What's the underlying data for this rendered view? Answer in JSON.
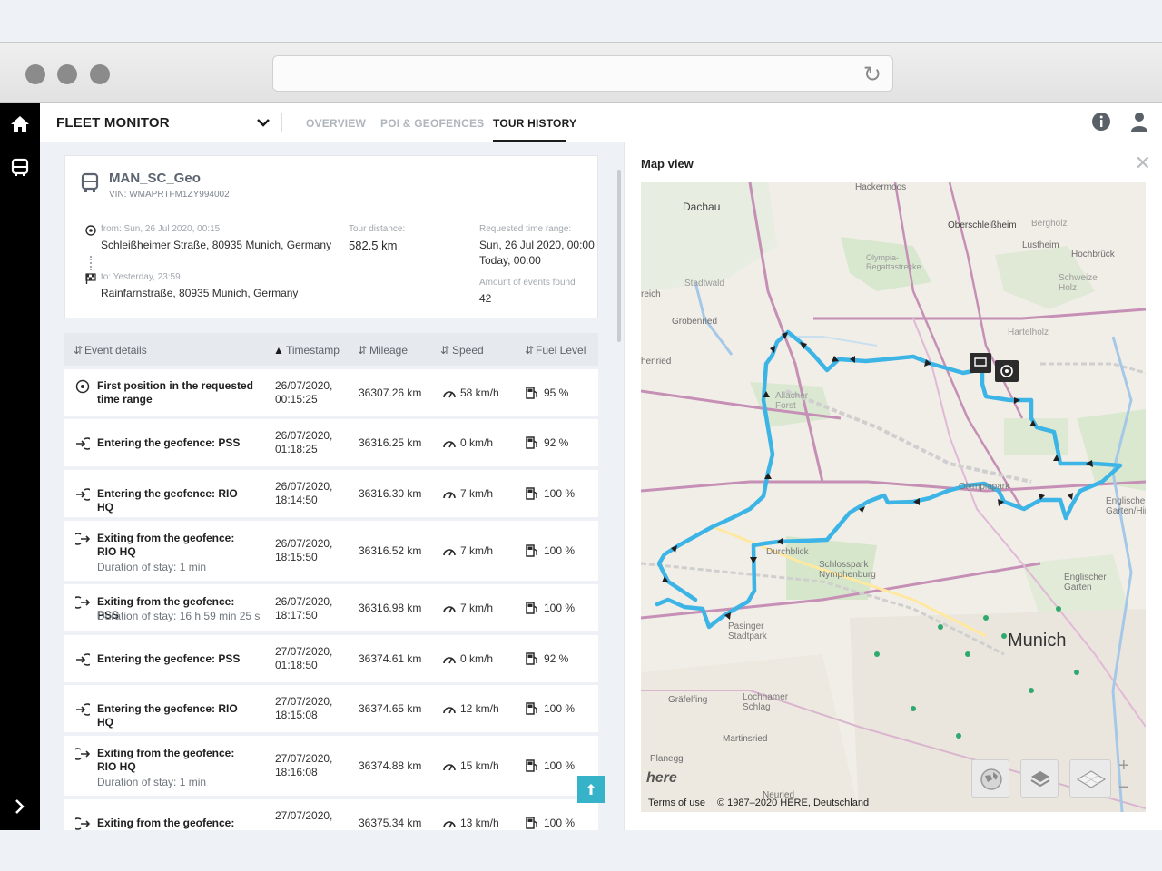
{
  "app": {
    "name": "FLEET MONITOR",
    "tabs": [
      {
        "label": "OVERVIEW",
        "active": false
      },
      {
        "label": "POI & GEOFENCES",
        "active": false
      },
      {
        "label": "TOUR HISTORY",
        "active": true
      }
    ]
  },
  "vehicle": {
    "name": "MAN_SC_Geo",
    "vin": "VIN: WMAPRTFM1ZY994002",
    "from_label": "from: Sun, 26 Jul 2020, 00:15",
    "from_address": "Schleißheimer Straße, 80935 Munich, Germany",
    "to_label": "to: Yesterday, 23:59",
    "to_address": "Rainfarnstraße, 80935 Munich, Germany",
    "tour_distance_label": "Tour distance:",
    "tour_distance": "582.5 km",
    "time_range_label": "Requested time range:",
    "time_range_start": "Sun, 26 Jul 2020, 00:00",
    "time_range_end": "Today, 00:00",
    "events_found_label": "Amount of events found",
    "events_found": "42"
  },
  "table": {
    "headers": [
      "Event details",
      "Timestamp",
      "Mileage",
      "Speed",
      "Fuel Level"
    ],
    "rows": [
      {
        "title": "First position in the requested time range",
        "sub": "",
        "ts_date": "26/07/2020,",
        "ts_time": "00:15:25",
        "mileage": "36307.26 km",
        "speed": "58 km/h",
        "fuel": "95 %",
        "icon": "target-icon"
      },
      {
        "title": "Entering the geofence: PSS",
        "sub": "",
        "ts_date": "26/07/2020,",
        "ts_time": "01:18:25",
        "mileage": "36316.25 km",
        "speed": "0 km/h",
        "fuel": "92 %",
        "icon": "enter-icon"
      },
      {
        "title": "Entering the geofence: RIO HQ",
        "sub": "",
        "ts_date": "26/07/2020,",
        "ts_time": "18:14:50",
        "mileage": "36316.30 km",
        "speed": "7 km/h",
        "fuel": "100 %",
        "icon": "enter-icon"
      },
      {
        "title": "Exiting from the geofence: RIO HQ",
        "sub": "Duration of stay:  1 min",
        "ts_date": "26/07/2020,",
        "ts_time": "18:15:50",
        "mileage": "36316.52 km",
        "speed": "7 km/h",
        "fuel": "100 %",
        "icon": "exit-icon"
      },
      {
        "title": "Exiting from the geofence: PSS",
        "sub": "Duration of stay:  16 h 59 min 25 s",
        "ts_date": "26/07/2020,",
        "ts_time": "18:17:50",
        "mileage": "36316.98 km",
        "speed": "7 km/h",
        "fuel": "100 %",
        "icon": "exit-icon"
      },
      {
        "title": "Entering the geofence: PSS",
        "sub": "",
        "ts_date": "27/07/2020,",
        "ts_time": "01:18:50",
        "mileage": "36374.61 km",
        "speed": "0 km/h",
        "fuel": "92 %",
        "icon": "enter-icon"
      },
      {
        "title": "Entering the geofence: RIO HQ",
        "sub": "",
        "ts_date": "27/07/2020,",
        "ts_time": "18:15:08",
        "mileage": "36374.65 km",
        "speed": "12 km/h",
        "fuel": "100 %",
        "icon": "enter-icon"
      },
      {
        "title": "Exiting from the geofence: RIO HQ",
        "sub": "Duration of stay:  1 min",
        "ts_date": "27/07/2020,",
        "ts_time": "18:16:08",
        "mileage": "36374.88 km",
        "speed": "15 km/h",
        "fuel": "100 %",
        "icon": "exit-icon"
      },
      {
        "title": "Exiting from the geofence: PSS",
        "sub": "",
        "ts_date": "27/07/2020,",
        "ts_time": "",
        "mileage": "36375.34 km",
        "speed": "13 km/h",
        "fuel": "100 %",
        "icon": "exit-icon"
      }
    ]
  },
  "map": {
    "title": "Map view",
    "route_color": "#3cb4e6",
    "labels": {
      "hackermoos": "Hackermoos",
      "dachau": "Dachau",
      "oberschleissheim": "Oberschleißheim",
      "bergholz": "Bergholz",
      "lustheim": "Lustheim",
      "hochbrueck": "Hochbrück",
      "olympia_regatta": "Olympia-Regattastrecke",
      "stadtwald": "Stadtwald",
      "schweize_holz": "Schweize Holz",
      "reich": "reich",
      "grobenried": "Grobenried",
      "hartelholz": "Hartelholz",
      "henried": "henried",
      "allacher_forst": "Allacher Forst",
      "olympiapark": "Olympiapark",
      "englischer_garten": "Englischer Garten/Hirsch",
      "durchblick": "Durchblick",
      "schlosspark": "Schlosspark Nymphenburg",
      "englischer_garten2": "Englischer Garten",
      "pasinger_stadtpark": "Pasinger Stadtpark",
      "munich": "Munich",
      "grafelfing": "Gräfelfing",
      "lochhamer_schlag": "Lochhamer Schlag",
      "martinsried": "Martinsried",
      "planegg": "Planegg",
      "neuried": "Neuried",
      "here": "here"
    },
    "terms": "Terms of use",
    "copyright": "© 1987–2020 HERE, Deutschland",
    "zoom_in": "+",
    "zoom_out": "−"
  }
}
